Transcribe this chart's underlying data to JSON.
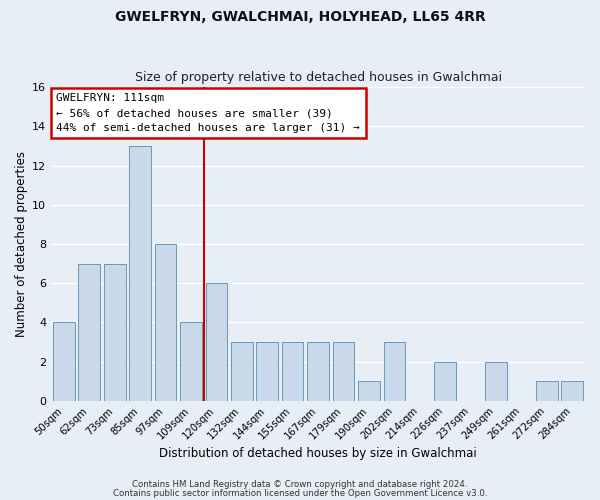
{
  "title": "GWELFRYN, GWALCHMAI, HOLYHEAD, LL65 4RR",
  "subtitle": "Size of property relative to detached houses in Gwalchmai",
  "xlabel": "Distribution of detached houses by size in Gwalchmai",
  "ylabel": "Number of detached properties",
  "bar_labels": [
    "50sqm",
    "62sqm",
    "73sqm",
    "85sqm",
    "97sqm",
    "109sqm",
    "120sqm",
    "132sqm",
    "144sqm",
    "155sqm",
    "167sqm",
    "179sqm",
    "190sqm",
    "202sqm",
    "214sqm",
    "226sqm",
    "237sqm",
    "249sqm",
    "261sqm",
    "272sqm",
    "284sqm"
  ],
  "bar_values": [
    4,
    7,
    7,
    13,
    8,
    4,
    6,
    3,
    3,
    3,
    3,
    3,
    1,
    3,
    0,
    2,
    0,
    2,
    0,
    1,
    1
  ],
  "bar_color": "#c9d9ea",
  "bar_edge_color": "#6699bb",
  "vline_x": 5.5,
  "vline_color": "#cc0000",
  "ylim": [
    0,
    16
  ],
  "yticks": [
    0,
    2,
    4,
    6,
    8,
    10,
    12,
    14,
    16
  ],
  "annotation_title": "GWELFRYN: 111sqm",
  "annotation_line1": "← 56% of detached houses are smaller (39)",
  "annotation_line2": "44% of semi-detached houses are larger (31) →",
  "annotation_box_color": "#ffffff",
  "annotation_box_edge": "#cc0000",
  "footer1": "Contains HM Land Registry data © Crown copyright and database right 2024.",
  "footer2": "Contains public sector information licensed under the Open Government Licence v3.0.",
  "background_color": "#e8eef5",
  "plot_bg_color": "#e8eef5",
  "grid_color": "#ffffff"
}
